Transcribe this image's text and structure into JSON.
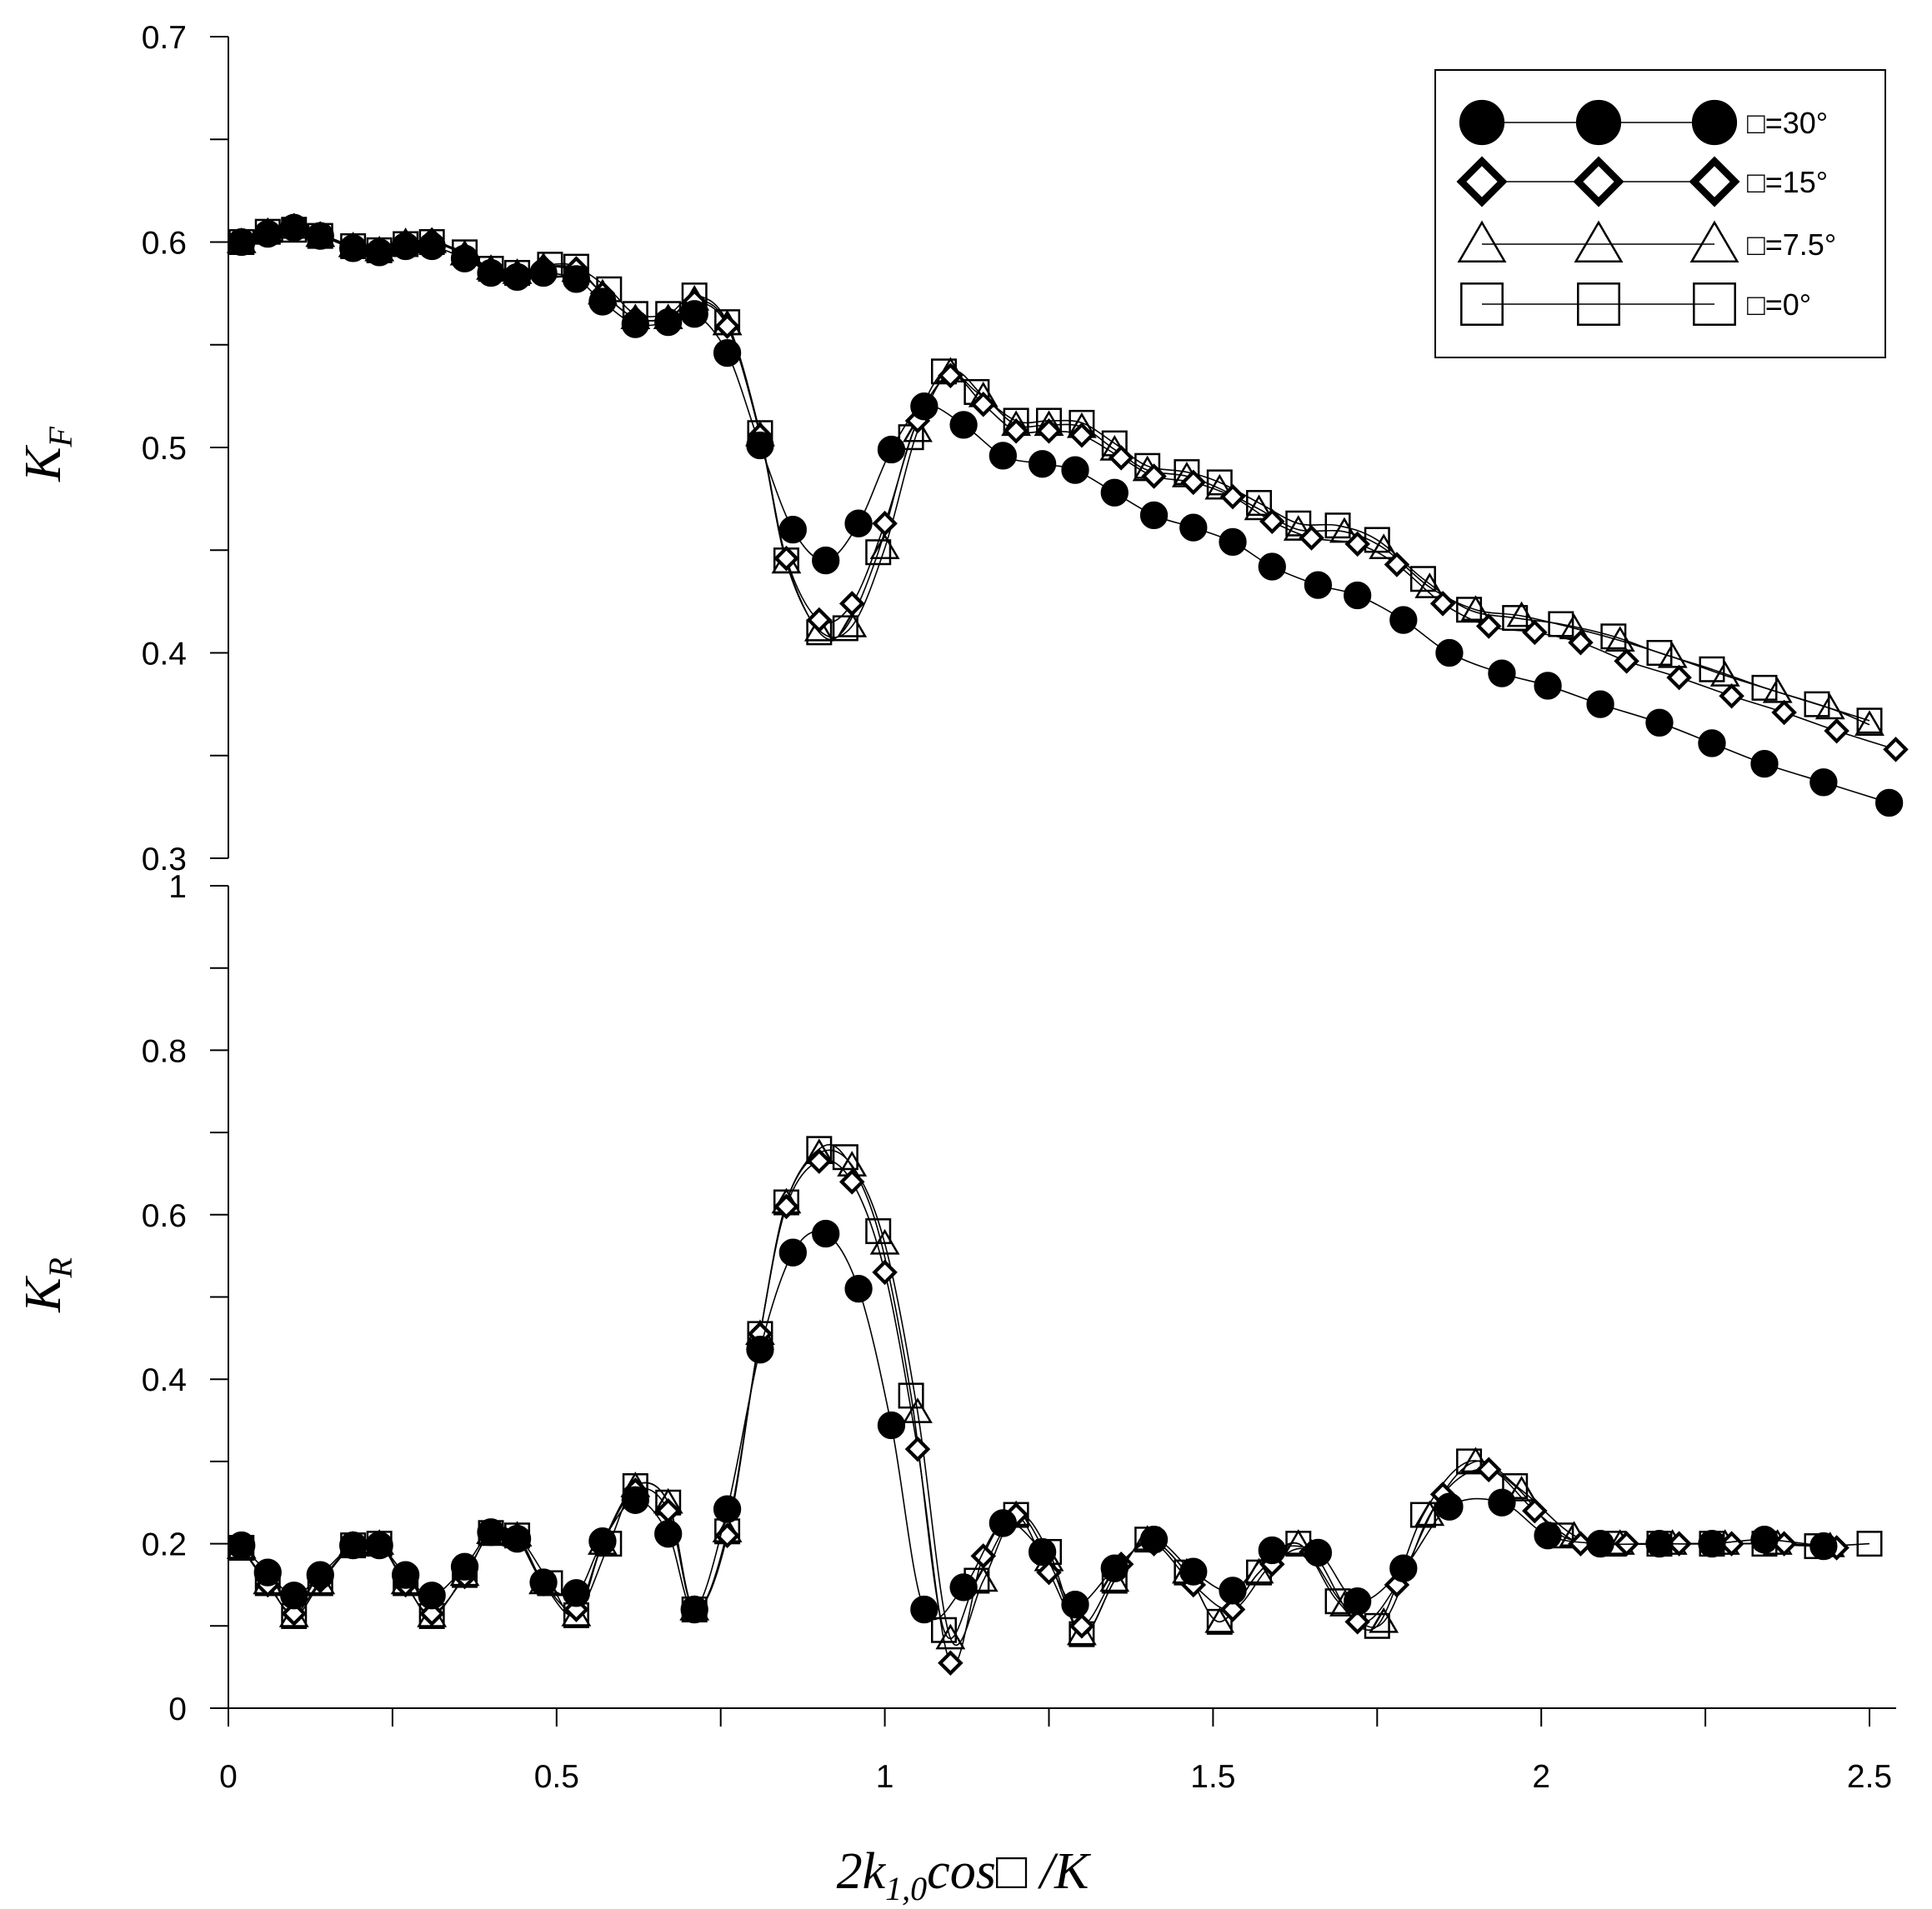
{
  "chart_data": [
    {
      "type": "line",
      "ylabel": "K",
      "ylabel_sub": "F",
      "xlim": [
        0,
        2.5
      ],
      "ylim": [
        0.3,
        0.7
      ],
      "x_ticks": [
        0,
        0.5,
        1,
        1.5,
        2,
        2.5
      ],
      "y_ticks": [
        "0.3",
        "0.4",
        "0.5",
        "0.6",
        "0.7"
      ],
      "grid": false,
      "legend_position": "top-right",
      "series": [
        {
          "name": "□=30°",
          "marker": "filled-circle",
          "x": [
            0.02,
            0.06,
            0.1,
            0.14,
            0.19,
            0.23,
            0.27,
            0.31,
            0.36,
            0.4,
            0.44,
            0.48,
            0.53,
            0.57,
            0.62,
            0.67,
            0.71,
            0.76,
            0.81,
            0.86,
            0.91,
            0.96,
            1.01,
            1.06,
            1.12,
            1.18,
            1.24,
            1.29,
            1.35,
            1.41,
            1.47,
            1.53,
            1.59,
            1.66,
            1.72,
            1.79,
            1.86,
            1.94,
            2.01,
            2.09,
            2.18,
            2.26,
            2.34,
            2.43,
            2.53
          ],
          "y": [
            0.6,
            0.604,
            0.607,
            0.603,
            0.597,
            0.595,
            0.598,
            0.598,
            0.592,
            0.585,
            0.583,
            0.585,
            0.582,
            0.571,
            0.56,
            0.561,
            0.565,
            0.546,
            0.501,
            0.46,
            0.445,
            0.463,
            0.499,
            0.52,
            0.511,
            0.496,
            0.492,
            0.489,
            0.478,
            0.467,
            0.461,
            0.454,
            0.442,
            0.433,
            0.428,
            0.416,
            0.4,
            0.39,
            0.384,
            0.375,
            0.366,
            0.356,
            0.346,
            0.337,
            0.327
          ]
        },
        {
          "name": "□=15°",
          "marker": "open-diamond",
          "x": [
            0.02,
            0.06,
            0.1,
            0.14,
            0.19,
            0.23,
            0.27,
            0.31,
            0.36,
            0.4,
            0.44,
            0.48,
            0.53,
            0.57,
            0.62,
            0.67,
            0.71,
            0.76,
            0.81,
            0.85,
            0.9,
            0.95,
            1.0,
            1.05,
            1.1,
            1.15,
            1.2,
            1.25,
            1.3,
            1.36,
            1.41,
            1.47,
            1.53,
            1.59,
            1.65,
            1.72,
            1.78,
            1.85,
            1.92,
            1.99,
            2.06,
            2.13,
            2.21,
            2.29,
            2.37,
            2.45,
            2.54
          ],
          "y": [
            0.6,
            0.605,
            0.608,
            0.604,
            0.598,
            0.596,
            0.599,
            0.601,
            0.594,
            0.586,
            0.584,
            0.588,
            0.587,
            0.575,
            0.563,
            0.563,
            0.571,
            0.559,
            0.506,
            0.446,
            0.416,
            0.424,
            0.463,
            0.513,
            0.535,
            0.521,
            0.508,
            0.508,
            0.506,
            0.495,
            0.486,
            0.483,
            0.476,
            0.464,
            0.456,
            0.453,
            0.443,
            0.424,
            0.413,
            0.41,
            0.405,
            0.396,
            0.388,
            0.379,
            0.371,
            0.362,
            0.353
          ]
        },
        {
          "name": "□=7.5°",
          "marker": "open-triangle",
          "x": [
            0.02,
            0.06,
            0.1,
            0.14,
            0.19,
            0.23,
            0.27,
            0.31,
            0.36,
            0.4,
            0.44,
            0.48,
            0.53,
            0.57,
            0.62,
            0.67,
            0.71,
            0.76,
            0.81,
            0.85,
            0.9,
            0.95,
            1.0,
            1.05,
            1.1,
            1.15,
            1.2,
            1.25,
            1.3,
            1.35,
            1.4,
            1.46,
            1.51,
            1.57,
            1.63,
            1.7,
            1.76,
            1.83,
            1.9,
            1.97,
            2.05,
            2.12,
            2.2,
            2.28,
            2.36,
            2.44,
            2.5
          ],
          "y": [
            0.6,
            0.605,
            0.607,
            0.603,
            0.598,
            0.596,
            0.6,
            0.6,
            0.594,
            0.587,
            0.585,
            0.588,
            0.586,
            0.575,
            0.563,
            0.563,
            0.572,
            0.56,
            0.506,
            0.444,
            0.411,
            0.413,
            0.451,
            0.508,
            0.537,
            0.525,
            0.511,
            0.511,
            0.51,
            0.499,
            0.489,
            0.486,
            0.48,
            0.47,
            0.46,
            0.459,
            0.451,
            0.432,
            0.421,
            0.418,
            0.412,
            0.406,
            0.398,
            0.389,
            0.381,
            0.373,
            0.365
          ]
        },
        {
          "name": "□=0°",
          "marker": "open-square",
          "x": [
            0.02,
            0.06,
            0.1,
            0.14,
            0.19,
            0.23,
            0.27,
            0.31,
            0.36,
            0.4,
            0.44,
            0.49,
            0.53,
            0.58,
            0.62,
            0.67,
            0.71,
            0.76,
            0.81,
            0.85,
            0.9,
            0.94,
            0.99,
            1.04,
            1.09,
            1.14,
            1.2,
            1.25,
            1.3,
            1.35,
            1.4,
            1.46,
            1.51,
            1.57,
            1.63,
            1.69,
            1.75,
            1.82,
            1.89,
            1.96,
            2.03,
            2.11,
            2.18,
            2.26,
            2.34,
            2.42,
            2.5
          ],
          "y": [
            0.6,
            0.605,
            0.606,
            0.603,
            0.598,
            0.596,
            0.599,
            0.6,
            0.595,
            0.587,
            0.585,
            0.589,
            0.588,
            0.577,
            0.565,
            0.565,
            0.574,
            0.561,
            0.507,
            0.445,
            0.41,
            0.412,
            0.449,
            0.505,
            0.537,
            0.527,
            0.513,
            0.513,
            0.512,
            0.502,
            0.491,
            0.488,
            0.483,
            0.473,
            0.463,
            0.462,
            0.455,
            0.436,
            0.421,
            0.417,
            0.414,
            0.408,
            0.4,
            0.392,
            0.383,
            0.375,
            0.367
          ]
        }
      ]
    },
    {
      "type": "line",
      "xlabel": "2k",
      "xlabel_sub": "1,0",
      "xlabel_suffix": "cos□ /K",
      "ylabel": "K",
      "ylabel_sub": "R",
      "xlim": [
        0,
        2.5
      ],
      "ylim": [
        0,
        1
      ],
      "x_ticks": [
        0,
        0.5,
        1,
        1.5,
        2,
        2.5
      ],
      "y_ticks": [
        "0",
        "0.2",
        "0.4",
        "0.6",
        "0.8",
        "1"
      ],
      "grid": false,
      "series": [
        {
          "name": "□=30°",
          "marker": "filled-circle",
          "x": [
            0.02,
            0.06,
            0.1,
            0.14,
            0.19,
            0.23,
            0.27,
            0.31,
            0.36,
            0.4,
            0.44,
            0.48,
            0.53,
            0.57,
            0.62,
            0.67,
            0.71,
            0.76,
            0.81,
            0.86,
            0.91,
            0.96,
            1.01,
            1.06,
            1.12,
            1.18,
            1.24,
            1.29,
            1.35,
            1.41,
            1.47,
            1.53,
            1.59,
            1.66,
            1.72,
            1.79,
            1.86,
            1.94,
            2.01,
            2.09,
            2.18,
            2.26,
            2.34,
            2.43
          ],
          "y": [
            0.198,
            0.165,
            0.137,
            0.162,
            0.198,
            0.198,
            0.162,
            0.137,
            0.172,
            0.214,
            0.206,
            0.153,
            0.14,
            0.203,
            0.253,
            0.212,
            0.12,
            0.242,
            0.436,
            0.554,
            0.577,
            0.51,
            0.344,
            0.12,
            0.147,
            0.225,
            0.19,
            0.126,
            0.17,
            0.205,
            0.166,
            0.143,
            0.192,
            0.189,
            0.13,
            0.17,
            0.245,
            0.25,
            0.21,
            0.2,
            0.2,
            0.2,
            0.205,
            0.197
          ]
        },
        {
          "name": "□=15°",
          "marker": "open-diamond",
          "x": [
            0.02,
            0.06,
            0.1,
            0.14,
            0.19,
            0.23,
            0.27,
            0.31,
            0.36,
            0.4,
            0.44,
            0.48,
            0.53,
            0.57,
            0.62,
            0.67,
            0.71,
            0.76,
            0.81,
            0.85,
            0.9,
            0.95,
            1.0,
            1.05,
            1.1,
            1.15,
            1.2,
            1.25,
            1.3,
            1.36,
            1.41,
            1.47,
            1.53,
            1.59,
            1.65,
            1.72,
            1.78,
            1.85,
            1.92,
            1.99,
            2.06,
            2.13,
            2.21,
            2.29,
            2.37,
            2.45
          ],
          "y": [
            0.195,
            0.15,
            0.115,
            0.155,
            0.198,
            0.2,
            0.15,
            0.115,
            0.16,
            0.215,
            0.21,
            0.153,
            0.12,
            0.2,
            0.265,
            0.24,
            0.12,
            0.21,
            0.455,
            0.61,
            0.665,
            0.64,
            0.53,
            0.315,
            0.055,
            0.185,
            0.235,
            0.165,
            0.1,
            0.175,
            0.2,
            0.15,
            0.12,
            0.175,
            0.19,
            0.105,
            0.15,
            0.26,
            0.29,
            0.24,
            0.2,
            0.2,
            0.2,
            0.2,
            0.2,
            0.195
          ]
        },
        {
          "name": "□=7.5°",
          "marker": "open-triangle",
          "x": [
            0.02,
            0.06,
            0.1,
            0.14,
            0.19,
            0.23,
            0.27,
            0.31,
            0.36,
            0.4,
            0.44,
            0.48,
            0.53,
            0.57,
            0.62,
            0.67,
            0.71,
            0.76,
            0.81,
            0.85,
            0.9,
            0.95,
            1.0,
            1.05,
            1.1,
            1.15,
            1.2,
            1.25,
            1.3,
            1.35,
            1.4,
            1.46,
            1.51,
            1.57,
            1.63,
            1.7,
            1.76,
            1.83,
            1.9,
            1.97,
            2.05,
            2.12,
            2.2,
            2.28,
            2.36,
            2.44
          ],
          "y": [
            0.195,
            0.152,
            0.112,
            0.152,
            0.198,
            0.2,
            0.152,
            0.112,
            0.162,
            0.213,
            0.21,
            0.152,
            0.113,
            0.2,
            0.27,
            0.25,
            0.12,
            0.215,
            0.455,
            0.615,
            0.675,
            0.66,
            0.565,
            0.36,
            0.085,
            0.155,
            0.235,
            0.18,
            0.09,
            0.155,
            0.205,
            0.165,
            0.105,
            0.165,
            0.2,
            0.125,
            0.105,
            0.235,
            0.3,
            0.265,
            0.21,
            0.2,
            0.2,
            0.2,
            0.2,
            0.197
          ]
        },
        {
          "name": "□=0°",
          "marker": "open-square",
          "x": [
            0.02,
            0.06,
            0.1,
            0.14,
            0.19,
            0.23,
            0.27,
            0.31,
            0.36,
            0.4,
            0.44,
            0.49,
            0.53,
            0.58,
            0.62,
            0.67,
            0.71,
            0.76,
            0.81,
            0.85,
            0.9,
            0.94,
            0.99,
            1.04,
            1.09,
            1.14,
            1.2,
            1.25,
            1.3,
            1.35,
            1.4,
            1.46,
            1.51,
            1.57,
            1.63,
            1.69,
            1.75,
            1.82,
            1.89,
            1.96,
            2.03,
            2.11,
            2.18,
            2.26,
            2.34,
            2.42,
            2.5
          ],
          "y": [
            0.195,
            0.152,
            0.112,
            0.152,
            0.198,
            0.2,
            0.152,
            0.112,
            0.162,
            0.213,
            0.21,
            0.152,
            0.113,
            0.2,
            0.27,
            0.25,
            0.12,
            0.215,
            0.455,
            0.615,
            0.68,
            0.67,
            0.58,
            0.38,
            0.095,
            0.155,
            0.235,
            0.19,
            0.09,
            0.155,
            0.205,
            0.165,
            0.105,
            0.165,
            0.2,
            0.13,
            0.1,
            0.235,
            0.3,
            0.27,
            0.21,
            0.2,
            0.2,
            0.2,
            0.2,
            0.197,
            0.2
          ]
        }
      ]
    }
  ],
  "legend": [
    {
      "label": "□=30°",
      "marker": "filled-circle"
    },
    {
      "label": "□=15°",
      "marker": "open-diamond"
    },
    {
      "label": "□=7.5°",
      "marker": "open-triangle"
    },
    {
      "label": "□=0°",
      "marker": "open-square"
    }
  ]
}
